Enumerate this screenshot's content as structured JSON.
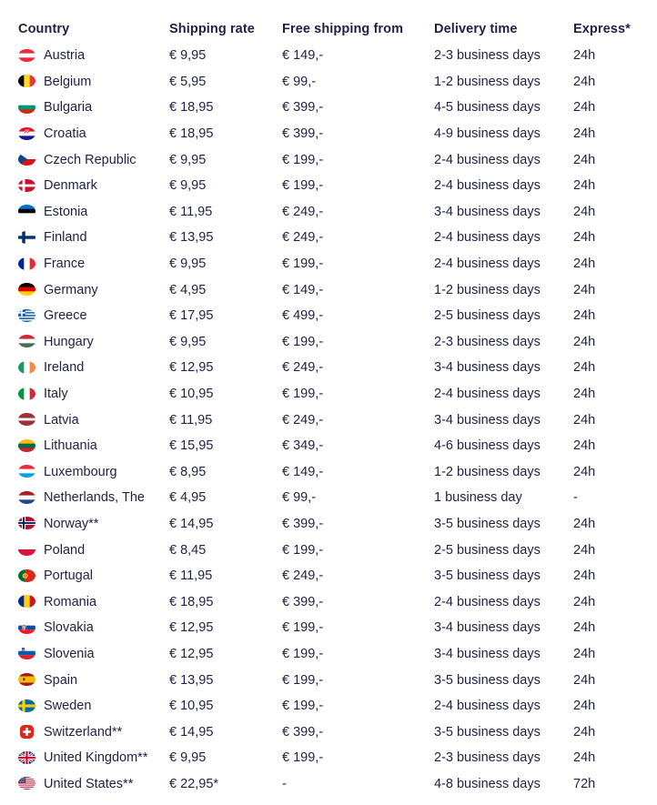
{
  "colors": {
    "text": "#1F2044",
    "background": "#FFFFFF"
  },
  "table": {
    "columns": [
      {
        "key": "country",
        "label": "Country"
      },
      {
        "key": "shipping_rate",
        "label": "Shipping rate"
      },
      {
        "key": "free_from",
        "label": "Free shipping from"
      },
      {
        "key": "delivery",
        "label": "Delivery time"
      },
      {
        "key": "express",
        "label": "Express*"
      }
    ],
    "rows": [
      {
        "country": "Austria",
        "flag": "austria",
        "shipping_rate": "€ 9,95",
        "free_from": "€ 149,-",
        "delivery": "2-3 business days",
        "express": "24h"
      },
      {
        "country": "Belgium",
        "flag": "belgium",
        "shipping_rate": "€ 5,95",
        "free_from": "€ 99,-",
        "delivery": "1-2 business days",
        "express": "24h"
      },
      {
        "country": "Bulgaria",
        "flag": "bulgaria",
        "shipping_rate": "€ 18,95",
        "free_from": "€ 399,-",
        "delivery": "4-5 business days",
        "express": "24h"
      },
      {
        "country": "Croatia",
        "flag": "croatia",
        "shipping_rate": "€ 18,95",
        "free_from": "€ 399,-",
        "delivery": "4-9 business days",
        "express": "24h"
      },
      {
        "country": "Czech Republic",
        "flag": "czech_republic",
        "shipping_rate": "€ 9,95",
        "free_from": "€ 199,-",
        "delivery": "2-4 business days",
        "express": "24h"
      },
      {
        "country": "Denmark",
        "flag": "denmark",
        "shipping_rate": "€ 9,95",
        "free_from": "€ 199,-",
        "delivery": "2-4 business days",
        "express": "24h"
      },
      {
        "country": "Estonia",
        "flag": "estonia",
        "shipping_rate": "€ 11,95",
        "free_from": "€ 249,-",
        "delivery": "3-4 business days",
        "express": "24h"
      },
      {
        "country": "Finland",
        "flag": "finland",
        "shipping_rate": "€ 13,95",
        "free_from": "€ 249,-",
        "delivery": "2-4 business days",
        "express": "24h"
      },
      {
        "country": "France",
        "flag": "france",
        "shipping_rate": "€ 9,95",
        "free_from": "€ 199,-",
        "delivery": "2-4 business days",
        "express": "24h"
      },
      {
        "country": "Germany",
        "flag": "germany",
        "shipping_rate": "€ 4,95",
        "free_from": "€ 149,-",
        "delivery": "1-2 business days",
        "express": "24h"
      },
      {
        "country": "Greece",
        "flag": "greece",
        "shipping_rate": "€ 17,95",
        "free_from": "€ 499,-",
        "delivery": "2-5 business days",
        "express": "24h"
      },
      {
        "country": "Hungary",
        "flag": "hungary",
        "shipping_rate": "€ 9,95",
        "free_from": "€ 199,-",
        "delivery": "2-3 business days",
        "express": "24h"
      },
      {
        "country": "Ireland",
        "flag": "ireland",
        "shipping_rate": "€ 12,95",
        "free_from": "€ 249,-",
        "delivery": "3-4 business days",
        "express": "24h"
      },
      {
        "country": "Italy",
        "flag": "italy",
        "shipping_rate": "€ 10,95",
        "free_from": "€ 199,-",
        "delivery": "2-4 business days",
        "express": "24h"
      },
      {
        "country": "Latvia",
        "flag": "latvia",
        "shipping_rate": "€ 11,95",
        "free_from": "€ 249,-",
        "delivery": "3-4 business days",
        "express": "24h"
      },
      {
        "country": "Lithuania",
        "flag": "lithuania",
        "shipping_rate": "€ 15,95",
        "free_from": "€ 349,-",
        "delivery": "4-6 business days",
        "express": "24h"
      },
      {
        "country": "Luxembourg",
        "flag": "luxembourg",
        "shipping_rate": "€ 8,95",
        "free_from": "€ 149,-",
        "delivery": "1-2 business days",
        "express": "24h"
      },
      {
        "country": "Netherlands, The",
        "flag": "netherlands",
        "shipping_rate": "€ 4,95",
        "free_from": "€ 99,-",
        "delivery": "1 business day",
        "express": "-"
      },
      {
        "country": "Norway**",
        "flag": "norway",
        "shipping_rate": "€ 14,95",
        "free_from": "€ 399,-",
        "delivery": "3-5 business days",
        "express": "24h"
      },
      {
        "country": "Poland",
        "flag": "poland",
        "shipping_rate": "€ 8,45",
        "free_from": "€ 199,-",
        "delivery": "2-5 business days",
        "express": "24h"
      },
      {
        "country": "Portugal",
        "flag": "portugal",
        "shipping_rate": "€ 11,95",
        "free_from": "€ 249,-",
        "delivery": "3-5 business days",
        "express": "24h"
      },
      {
        "country": "Romania",
        "flag": "romania",
        "shipping_rate": "€ 18,95",
        "free_from": "€ 399,-",
        "delivery": "2-4 business days",
        "express": "24h"
      },
      {
        "country": "Slovakia",
        "flag": "slovakia",
        "shipping_rate": "€ 12,95",
        "free_from": "€ 199,-",
        "delivery": "3-4 business days",
        "express": "24h"
      },
      {
        "country": "Slovenia",
        "flag": "slovenia",
        "shipping_rate": "€ 12,95",
        "free_from": "€ 199,-",
        "delivery": "3-4 business days",
        "express": "24h"
      },
      {
        "country": "Spain",
        "flag": "spain",
        "shipping_rate": "€ 13,95",
        "free_from": "€ 199,-",
        "delivery": "3-5 business days",
        "express": "24h"
      },
      {
        "country": "Sweden",
        "flag": "sweden",
        "shipping_rate": "€ 10,95",
        "free_from": "€ 199,-",
        "delivery": "2-4 business days",
        "express": "24h"
      },
      {
        "country": "Switzerland**",
        "flag": "switzerland",
        "shipping_rate": "€ 14,95",
        "free_from": "€ 399,-",
        "delivery": "3-5 business days",
        "express": "24h"
      },
      {
        "country": "United Kingdom**",
        "flag": "united_kingdom",
        "shipping_rate": "€ 9,95",
        "free_from": "€ 199,-",
        "delivery": "2-3 business days",
        "express": "24h"
      },
      {
        "country": "United States**",
        "flag": "united_states",
        "shipping_rate": "€ 22,95*",
        "free_from": "-",
        "delivery": "4-8 business days",
        "express": "72h"
      }
    ]
  },
  "flags": {
    "austria": {
      "kind": "h",
      "c": [
        "#ED2939",
        "#FFFFFF",
        "#ED2939"
      ]
    },
    "belgium": {
      "kind": "v",
      "c": [
        "#000000",
        "#FDDA24",
        "#EF3340"
      ]
    },
    "bulgaria": {
      "kind": "h",
      "c": [
        "#FFFFFF",
        "#00966E",
        "#D62612"
      ]
    },
    "croatia": {
      "kind": "croatia",
      "c": [
        "#E8112D",
        "#FFFFFF",
        "#171796"
      ]
    },
    "czech_republic": {
      "kind": "czech",
      "c": [
        "#FFFFFF",
        "#D7141A",
        "#11457E"
      ]
    },
    "denmark": {
      "kind": "nordic",
      "bg": "#C8102E",
      "cross": "#FFFFFF",
      "w": 9
    },
    "estonia": {
      "kind": "h",
      "c": [
        "#0072CE",
        "#000000",
        "#FFFFFF"
      ]
    },
    "finland": {
      "kind": "nordic",
      "bg": "#FFFFFF",
      "cross": "#002F6C",
      "w": 11
    },
    "france": {
      "kind": "v",
      "c": [
        "#002395",
        "#FFFFFF",
        "#ED2939"
      ]
    },
    "germany": {
      "kind": "h",
      "c": [
        "#000000",
        "#DD0000",
        "#FFCE00"
      ]
    },
    "greece": {
      "kind": "greece",
      "c": [
        "#0D5EAF",
        "#FFFFFF"
      ]
    },
    "hungary": {
      "kind": "h",
      "c": [
        "#CE2939",
        "#FFFFFF",
        "#477050"
      ]
    },
    "ireland": {
      "kind": "v",
      "c": [
        "#169B62",
        "#FFFFFF",
        "#FF883E"
      ]
    },
    "italy": {
      "kind": "v",
      "c": [
        "#009246",
        "#FFFFFF",
        "#CE2B37"
      ]
    },
    "latvia": {
      "kind": "hw",
      "c": [
        [
          "#9E3039",
          2
        ],
        [
          "#FFFFFF",
          1
        ],
        [
          "#9E3039",
          2
        ]
      ]
    },
    "lithuania": {
      "kind": "h",
      "c": [
        "#FDB913",
        "#006A44",
        "#C1272D"
      ]
    },
    "luxembourg": {
      "kind": "h",
      "c": [
        "#ED2939",
        "#FFFFFF",
        "#00A1DE"
      ]
    },
    "netherlands": {
      "kind": "h",
      "c": [
        "#AE1C28",
        "#FFFFFF",
        "#21468B"
      ]
    },
    "norway": {
      "kind": "nordic",
      "bg": "#BA0C2F",
      "cross": "#FFFFFF",
      "w": 13,
      "inner": "#00205B",
      "iw": 6
    },
    "poland": {
      "kind": "h",
      "c": [
        "#FFFFFF",
        "#DC143C"
      ]
    },
    "portugal": {
      "kind": "portugal",
      "c": [
        "#046A38",
        "#DA291C",
        "#FFE900"
      ]
    },
    "romania": {
      "kind": "v",
      "c": [
        "#002B7F",
        "#FCD116",
        "#CE1126"
      ]
    },
    "slovakia": {
      "kind": "slovakia",
      "c": [
        "#FFFFFF",
        "#0B4EA2",
        "#EE1C25"
      ]
    },
    "slovenia": {
      "kind": "slovenia",
      "c": [
        "#FFFFFF",
        "#005BAA",
        "#ED1C24"
      ]
    },
    "spain": {
      "kind": "spain",
      "c": [
        "#AA151B",
        "#F1BF00"
      ]
    },
    "sweden": {
      "kind": "nordic",
      "bg": "#006AA7",
      "cross": "#FECC02",
      "w": 10
    },
    "switzerland": {
      "kind": "swiss",
      "c": [
        "#DA291C",
        "#FFFFFF"
      ]
    },
    "united_kingdom": {
      "kind": "uk",
      "c": [
        "#012169",
        "#FFFFFF",
        "#C8102E"
      ]
    },
    "united_states": {
      "kind": "us",
      "c": [
        "#B22234",
        "#FFFFFF",
        "#3C3B6E"
      ]
    }
  }
}
